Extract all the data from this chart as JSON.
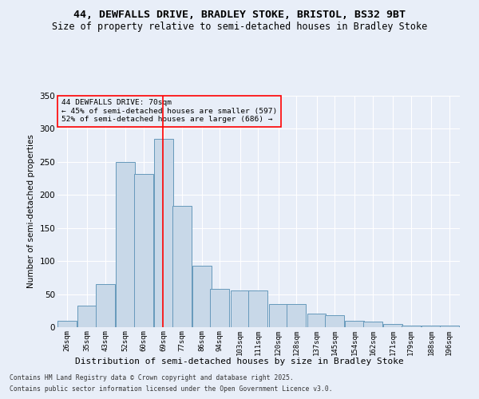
{
  "title1": "44, DEWFALLS DRIVE, BRADLEY STOKE, BRISTOL, BS32 9BT",
  "title2": "Size of property relative to semi-detached houses in Bradley Stoke",
  "xlabel": "Distribution of semi-detached houses by size in Bradley Stoke",
  "ylabel": "Number of semi-detached properties",
  "bar_color": "#c8d8e8",
  "bar_edge_color": "#6699bb",
  "vline_value": 69,
  "annotation_title": "44 DEWFALLS DRIVE: 70sqm",
  "annotation_line1": "← 45% of semi-detached houses are smaller (597)",
  "annotation_line2": "52% of semi-detached houses are larger (686) →",
  "footnote1": "Contains HM Land Registry data © Crown copyright and database right 2025.",
  "footnote2": "Contains public sector information licensed under the Open Government Licence v3.0.",
  "categories": [
    "26sqm",
    "35sqm",
    "43sqm",
    "52sqm",
    "60sqm",
    "69sqm",
    "77sqm",
    "86sqm",
    "94sqm",
    "103sqm",
    "111sqm",
    "120sqm",
    "128sqm",
    "137sqm",
    "145sqm",
    "154sqm",
    "162sqm",
    "171sqm",
    "179sqm",
    "188sqm",
    "196sqm"
  ],
  "bin_starts": [
    22,
    31,
    39,
    48,
    56,
    65,
    73,
    82,
    90,
    99,
    107,
    116,
    124,
    133,
    141,
    150,
    158,
    167,
    175,
    184,
    192
  ],
  "bin_width": 8.5,
  "values": [
    10,
    33,
    65,
    250,
    232,
    285,
    183,
    93,
    58,
    55,
    55,
    35,
    35,
    20,
    18,
    10,
    8,
    5,
    2,
    2,
    2
  ],
  "ylim": [
    0,
    350
  ],
  "yticks": [
    0,
    50,
    100,
    150,
    200,
    250,
    300,
    350
  ],
  "background_color": "#e8eef8",
  "grid_color": "#ffffff",
  "title_fontsize": 9.5,
  "subtitle_fontsize": 8.5
}
